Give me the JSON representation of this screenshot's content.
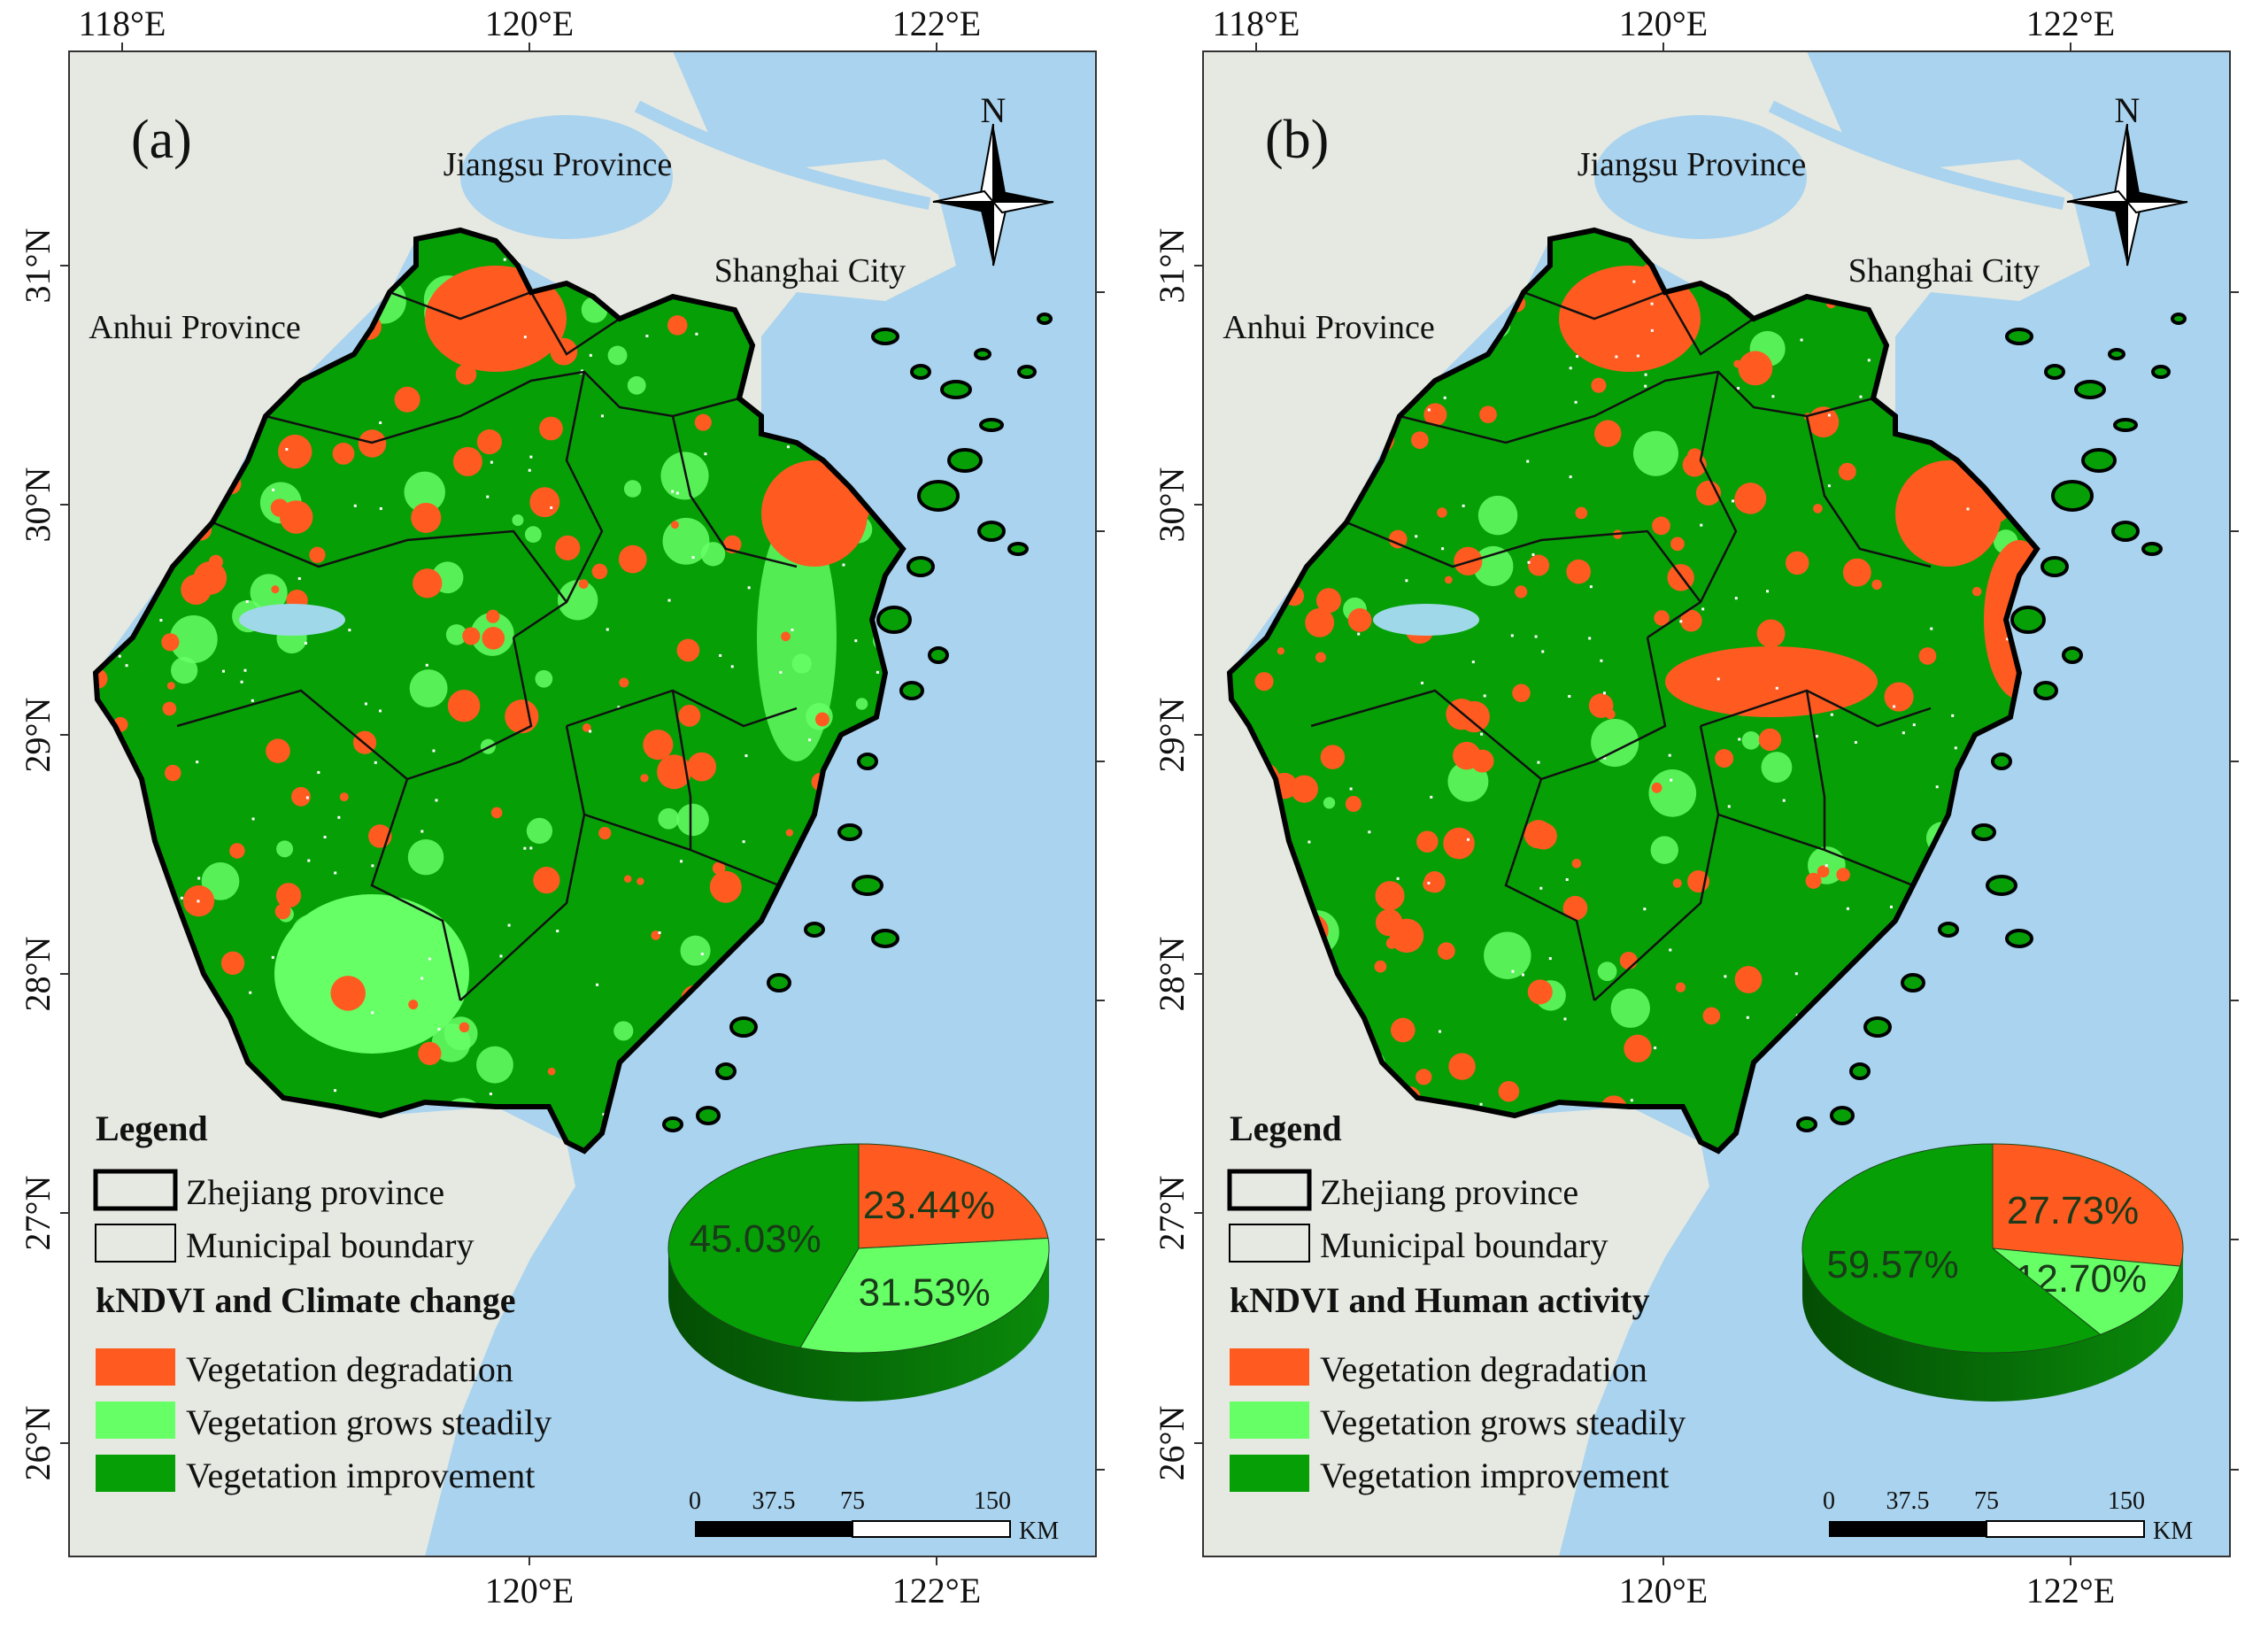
{
  "axes": {
    "lon_ticks": [
      "118°E",
      "120°E",
      "122°E"
    ],
    "bottom_lon_ticks": [
      "120°E",
      "122°E"
    ],
    "lat_ticks": [
      "31°N",
      "30°N",
      "29°N",
      "28°N",
      "27°N",
      "26°N"
    ]
  },
  "places": {
    "jiangsu": "Jiangsu Province",
    "shanghai": "Shanghai City",
    "anhui": "Anhui Province"
  },
  "colors": {
    "sea": "#a9d3ee",
    "land": "#e6e8e2",
    "degradation": "#ff5a1f",
    "steady": "#66ff66",
    "improvement": "#06a006",
    "boundary": "#000000"
  },
  "panels": [
    {
      "label": "(a)",
      "legend_title": "Legend",
      "boundary_items": [
        "Zhejiang province",
        "Municipal boundary"
      ],
      "category_title": "kNDVI and Climate change",
      "categories": [
        "Vegetation degradation",
        "Vegetation grows steadily",
        "Vegetation improvement"
      ],
      "pie": [
        {
          "name": "Vegetation degradation",
          "value": 23.44,
          "label": "23.44%"
        },
        {
          "name": "Vegetation grows steadily",
          "value": 31.53,
          "label": "31.53%"
        },
        {
          "name": "Vegetation improvement",
          "value": 45.03,
          "label": "45.03%"
        }
      ],
      "scale": {
        "ticks": [
          "0",
          "37.5",
          "75",
          "150"
        ],
        "unit": "KM"
      },
      "north": "N"
    },
    {
      "label": "(b)",
      "legend_title": "Legend",
      "boundary_items": [
        "Zhejiang province",
        "Municipal boundary"
      ],
      "category_title": "kNDVI and Human activity",
      "categories": [
        "Vegetation degradation",
        "Vegetation grows steadily",
        "Vegetation improvement"
      ],
      "pie": [
        {
          "name": "Vegetation degradation",
          "value": 27.73,
          "label": "27.73%"
        },
        {
          "name": "Vegetation grows steadily",
          "value": 12.7,
          "label": "12.70%"
        },
        {
          "name": "Vegetation improvement",
          "value": 59.57,
          "label": "59.57%"
        }
      ],
      "scale": {
        "ticks": [
          "0",
          "37.5",
          "75",
          "150"
        ],
        "unit": "KM"
      },
      "north": "N"
    }
  ]
}
